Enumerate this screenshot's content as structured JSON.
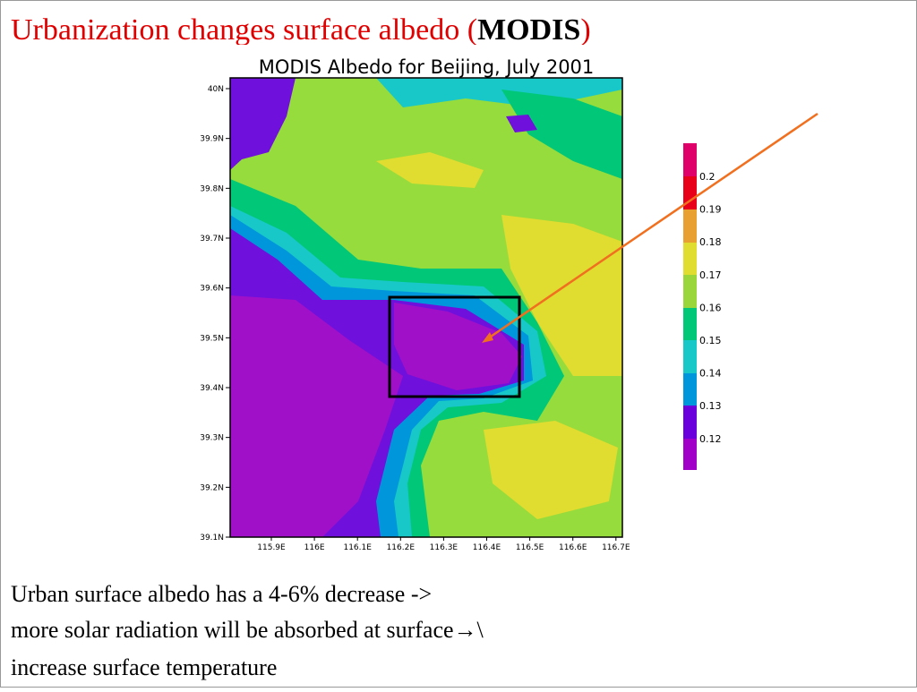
{
  "slide": {
    "title": {
      "text": "Urbanization changes surface albedo (",
      "bold": "MODIS",
      "end": ")"
    },
    "map": {
      "title": "MODIS  Albedo for Beijing, July 2001",
      "y_labels": [
        "40N",
        "39.9N",
        "39.8N",
        "39.7N",
        "39.6N",
        "39.5N",
        "39.4N",
        "39.3N",
        "39.2N",
        "39.1N"
      ],
      "x_labels": [
        "115.9E",
        "116E",
        "116.1E",
        "116.2E",
        "116.3E",
        "116.4E",
        "116.5E",
        "116.6E",
        "116.7E"
      ],
      "colorbar_labels": [
        "0.2",
        "0.19",
        "0.18",
        "0.17",
        "0.16",
        "0.15",
        "0.14",
        "0.13",
        "0.12"
      ]
    },
    "body": [
      "Urban surface albedo has a 4-6% decrease  ->",
      "more solar radiation will be absorbed at surface→\\",
      "increase surface temperature"
    ]
  }
}
